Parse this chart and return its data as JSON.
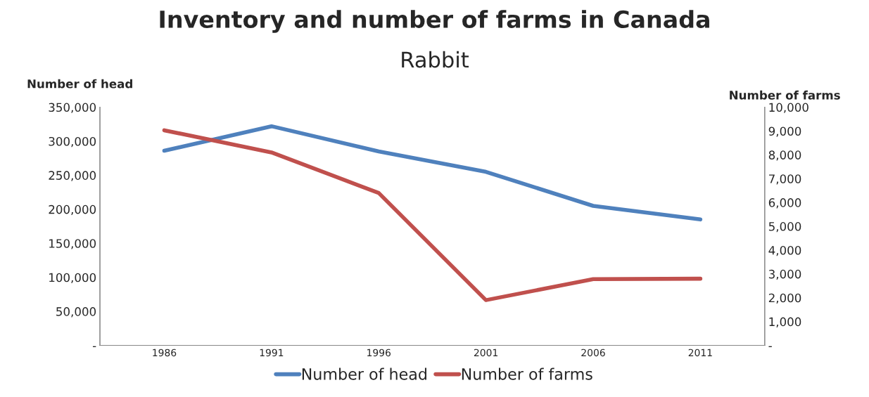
{
  "chart_data": {
    "type": "line",
    "title": "Inventory and number of farms in Canada",
    "subtitle": "Rabbit",
    "ylabel": "Number of head",
    "y2label": "Number of farms",
    "categories": [
      "1986",
      "1991",
      "1996",
      "2001",
      "2006",
      "2011"
    ],
    "series": [
      {
        "name": "Number of head",
        "color": "#4f81bd",
        "values": [
          286000,
          322000,
          285000,
          255000,
          205000,
          185000
        ]
      },
      {
        "name": "Number of farms",
        "color": "#c0504d",
        "axis": "y2",
        "values": [
          9030,
          8100,
          6400,
          1900,
          2780,
          2800
        ]
      }
    ],
    "ylim": [
      0,
      350000
    ],
    "yticks": [
      {
        "value": 0,
        "label": "-"
      },
      {
        "value": 50000,
        "label": "50,000"
      },
      {
        "value": 100000,
        "label": "100,000"
      },
      {
        "value": 150000,
        "label": "150,000"
      },
      {
        "value": 200000,
        "label": "200,000"
      },
      {
        "value": 250000,
        "label": "250,000"
      },
      {
        "value": 300000,
        "label": "300,000"
      },
      {
        "value": 350000,
        "label": "350,000"
      }
    ],
    "y2lim": [
      0,
      10000
    ],
    "y2ticks": [
      {
        "value": 0,
        "label": "-"
      },
      {
        "value": 1000,
        "label": "1,000"
      },
      {
        "value": 2000,
        "label": "2,000"
      },
      {
        "value": 3000,
        "label": "3,000"
      },
      {
        "value": 4000,
        "label": "4,000"
      },
      {
        "value": 5000,
        "label": "5,000"
      },
      {
        "value": 6000,
        "label": "6,000"
      },
      {
        "value": 7000,
        "label": "7,000"
      },
      {
        "value": 8000,
        "label": "8,000"
      },
      {
        "value": 9000,
        "label": "9,000"
      },
      {
        "value": 10000,
        "label": "10,000"
      }
    ],
    "grid": false,
    "legend": "bottom",
    "marker": "none",
    "line_style": "solid"
  }
}
